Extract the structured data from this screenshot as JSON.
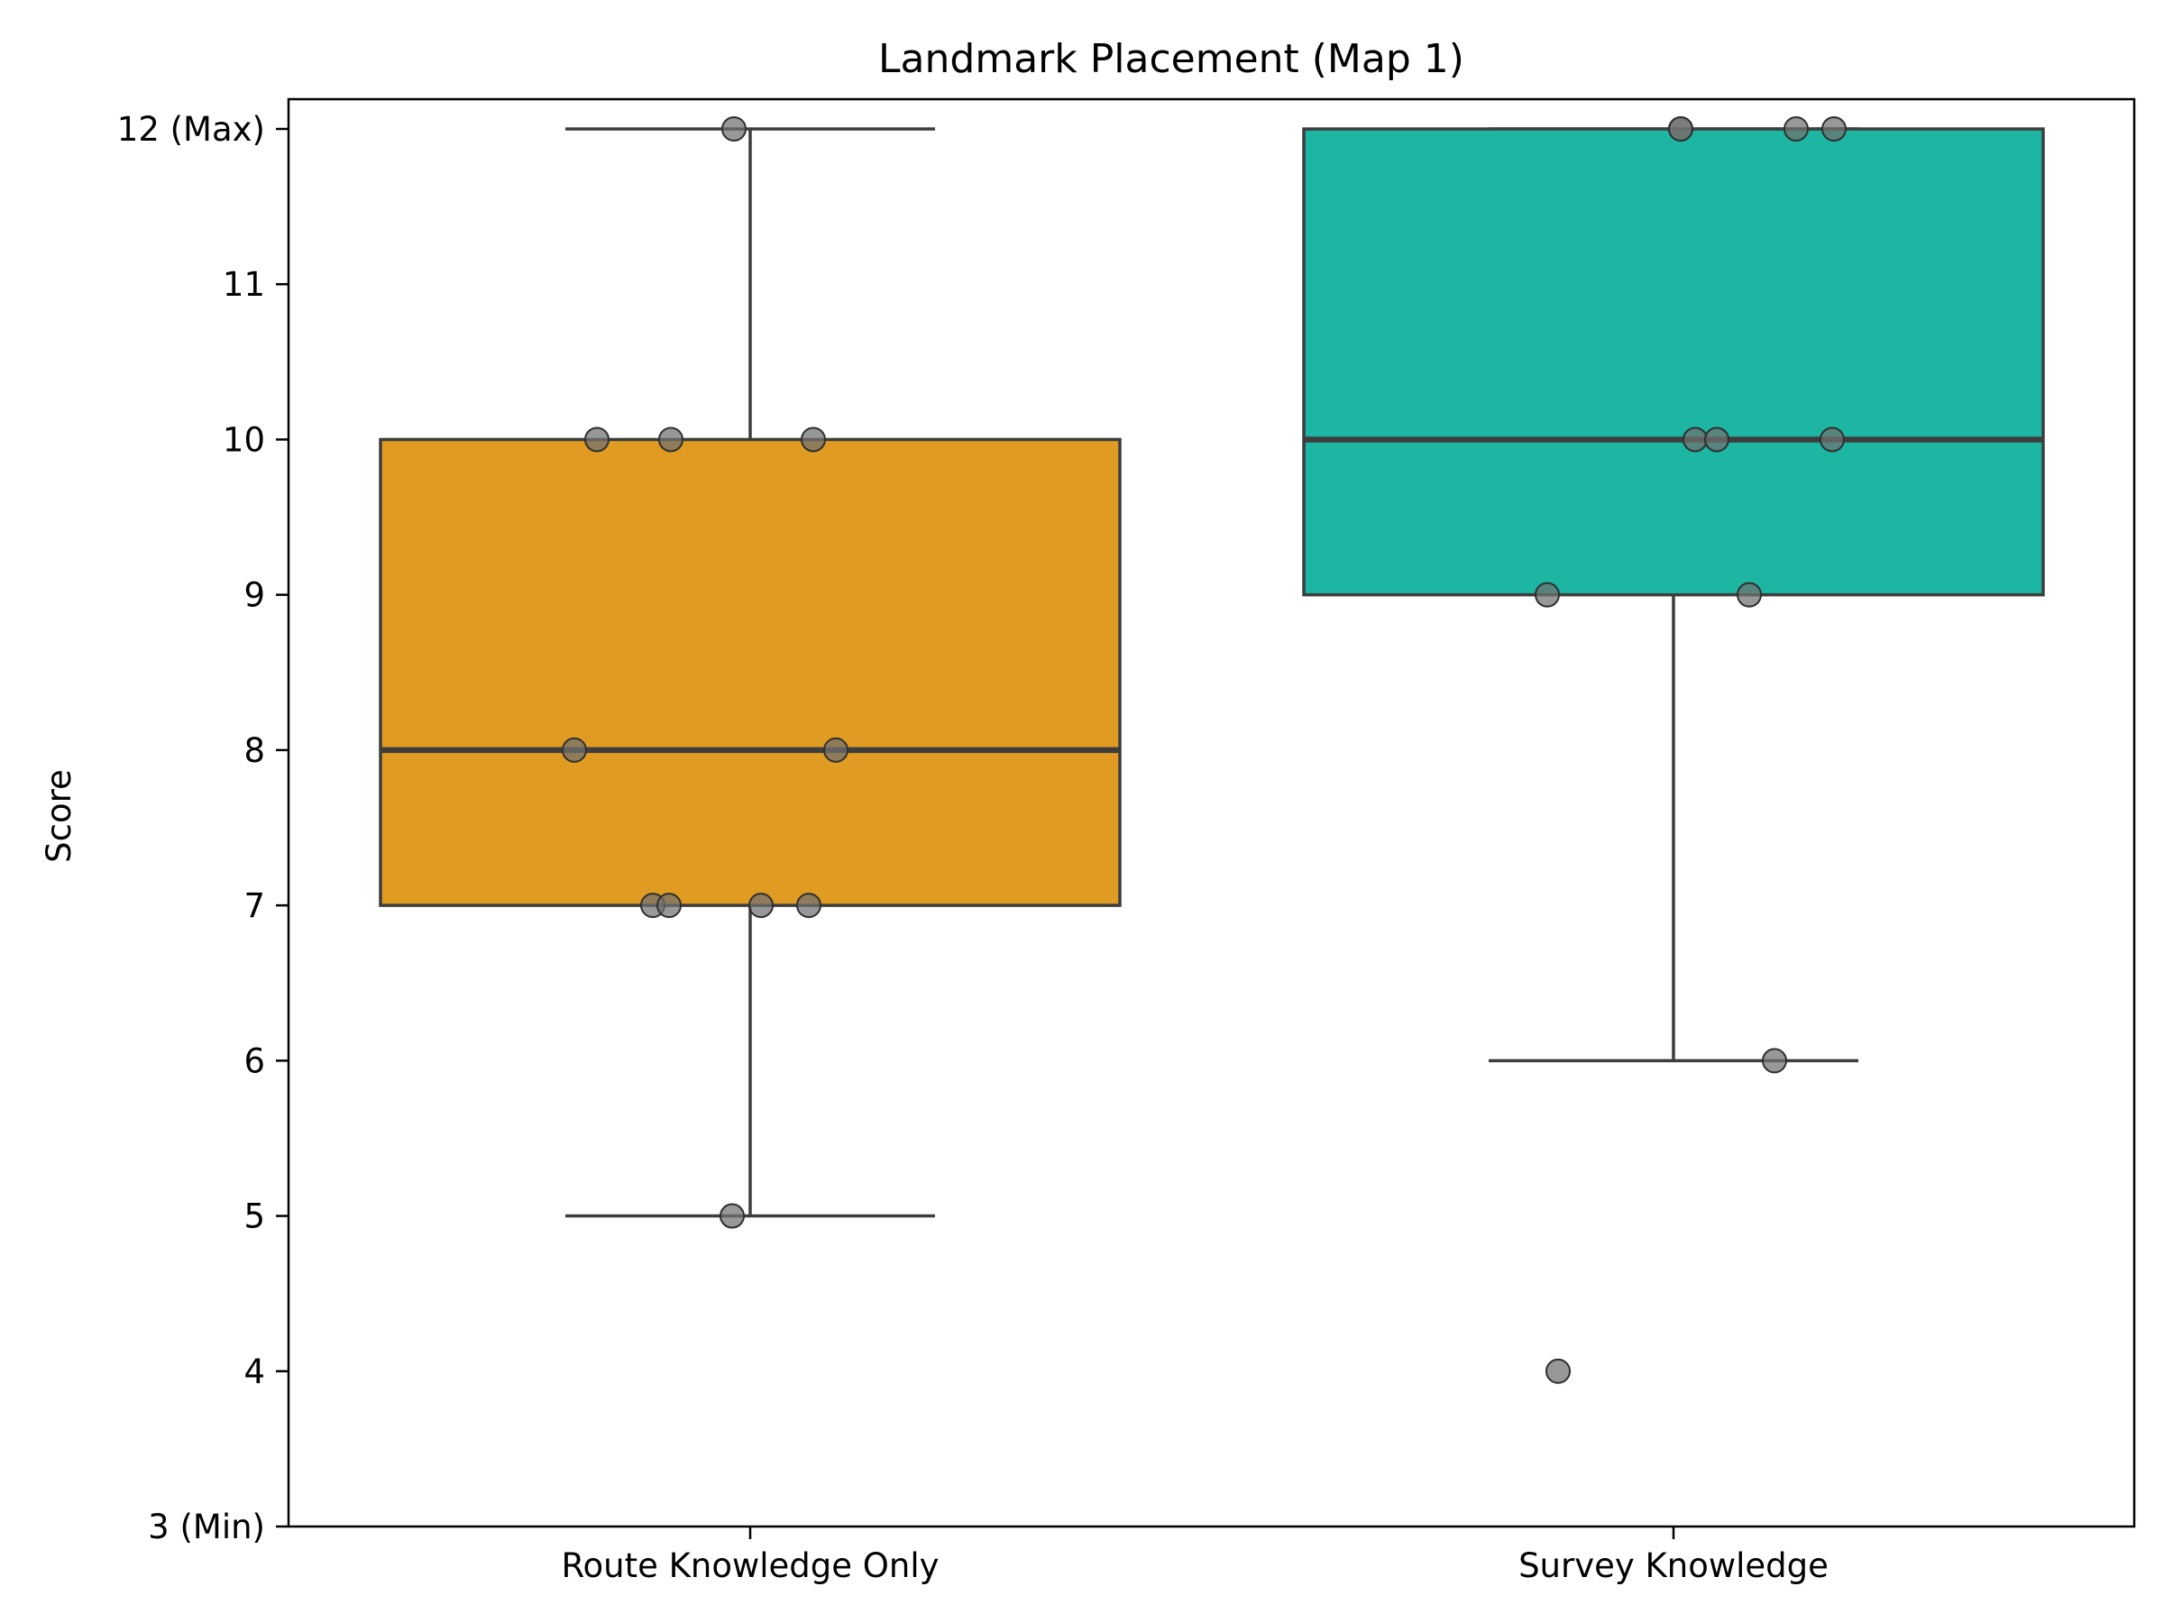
{
  "chart_data": {
    "type": "box",
    "title": "Landmark Placement (Map 1)",
    "xlabel": "",
    "ylabel": "Score",
    "ylim": [
      3,
      12.2
    ],
    "yticks": [
      {
        "value": 3,
        "label": "3 (Min)"
      },
      {
        "value": 4,
        "label": "4"
      },
      {
        "value": 5,
        "label": "5"
      },
      {
        "value": 6,
        "label": "6"
      },
      {
        "value": 7,
        "label": "7"
      },
      {
        "value": 8,
        "label": "8"
      },
      {
        "value": 9,
        "label": "9"
      },
      {
        "value": 10,
        "label": "10"
      },
      {
        "value": 11,
        "label": "11"
      },
      {
        "value": 12,
        "label": "12 (Max)"
      }
    ],
    "categories": [
      "Route Knowledge Only",
      "Survey Knowledge"
    ],
    "series": [
      {
        "category": "Route Knowledge Only",
        "color": "#E09C22",
        "q1": 7,
        "median": 8,
        "q3": 10,
        "whisker_low": 5,
        "whisker_high": 12,
        "outliers": [],
        "points": [
          12,
          10,
          10,
          10,
          8,
          8,
          7,
          7,
          7,
          7,
          5
        ]
      },
      {
        "category": "Survey Knowledge",
        "color": "#1CB6A3",
        "q1": 9,
        "median": 10,
        "q3": 12,
        "whisker_low": 6,
        "whisker_high": 12,
        "outliers": [
          4
        ],
        "points": [
          12,
          12,
          12,
          12,
          10,
          10,
          10,
          9,
          9,
          6,
          4
        ]
      }
    ],
    "grid": false,
    "legend": "none"
  }
}
